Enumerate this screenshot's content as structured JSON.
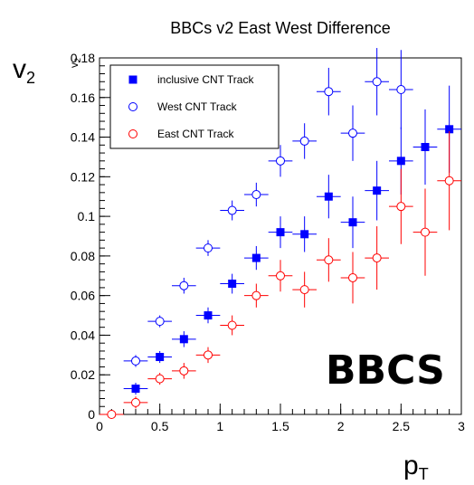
{
  "chart_data": {
    "type": "scatter",
    "title": "BBCs v2 East West Difference",
    "ylabel_main": "v",
    "ylabel_sub": "2",
    "yaxis_small_label_main": "v",
    "yaxis_small_label_sub": "2",
    "xlabel_main": "p",
    "xlabel_sub": "T",
    "watermark": "BBCS",
    "xlim": [
      0,
      3
    ],
    "ylim": [
      0,
      0.18
    ],
    "x_ticks": [
      0,
      0.5,
      1,
      1.5,
      2,
      2.5,
      3
    ],
    "x_tick_labels": [
      "0",
      "0.5",
      "1",
      "1.5",
      "2",
      "2.5",
      "3"
    ],
    "y_ticks": [
      0,
      0.02,
      0.04,
      0.06,
      0.08,
      0.1,
      0.12,
      0.14,
      0.16,
      0.18
    ],
    "y_tick_labels": [
      "0",
      "0.02",
      "0.04",
      "0.06",
      "0.08",
      "0.1",
      "0.12",
      "0.14",
      "0.16",
      "0.18"
    ],
    "grid": false,
    "legend_position": "top-left",
    "series": [
      {
        "name": "inclusive CNT Track",
        "marker": "filled-square",
        "color": "#0000ff",
        "points": [
          {
            "x": 0.3,
            "y": 0.013,
            "xerr": 0.1,
            "yerr": 0.003
          },
          {
            "x": 0.5,
            "y": 0.029,
            "xerr": 0.1,
            "yerr": 0.003
          },
          {
            "x": 0.7,
            "y": 0.038,
            "xerr": 0.1,
            "yerr": 0.004
          },
          {
            "x": 0.9,
            "y": 0.05,
            "xerr": 0.1,
            "yerr": 0.004
          },
          {
            "x": 1.1,
            "y": 0.066,
            "xerr": 0.1,
            "yerr": 0.005
          },
          {
            "x": 1.3,
            "y": 0.079,
            "xerr": 0.1,
            "yerr": 0.006
          },
          {
            "x": 1.5,
            "y": 0.092,
            "xerr": 0.1,
            "yerr": 0.008
          },
          {
            "x": 1.7,
            "y": 0.091,
            "xerr": 0.1,
            "yerr": 0.009
          },
          {
            "x": 1.9,
            "y": 0.11,
            "xerr": 0.1,
            "yerr": 0.011
          },
          {
            "x": 2.1,
            "y": 0.097,
            "xerr": 0.1,
            "yerr": 0.013
          },
          {
            "x": 2.3,
            "y": 0.113,
            "xerr": 0.1,
            "yerr": 0.015
          },
          {
            "x": 2.5,
            "y": 0.128,
            "xerr": 0.1,
            "yerr": 0.017
          },
          {
            "x": 2.7,
            "y": 0.135,
            "xerr": 0.1,
            "yerr": 0.019
          },
          {
            "x": 2.9,
            "y": 0.144,
            "xerr": 0.1,
            "yerr": 0.022
          }
        ]
      },
      {
        "name": "West CNT Track",
        "marker": "open-circle",
        "color": "#0000ff",
        "points": [
          {
            "x": 0.3,
            "y": 0.027,
            "xerr": 0.1,
            "yerr": 0.003
          },
          {
            "x": 0.5,
            "y": 0.047,
            "xerr": 0.1,
            "yerr": 0.003
          },
          {
            "x": 0.7,
            "y": 0.065,
            "xerr": 0.1,
            "yerr": 0.004
          },
          {
            "x": 0.9,
            "y": 0.084,
            "xerr": 0.1,
            "yerr": 0.004
          },
          {
            "x": 1.1,
            "y": 0.103,
            "xerr": 0.1,
            "yerr": 0.005
          },
          {
            "x": 1.3,
            "y": 0.111,
            "xerr": 0.1,
            "yerr": 0.006
          },
          {
            "x": 1.5,
            "y": 0.128,
            "xerr": 0.1,
            "yerr": 0.008
          },
          {
            "x": 1.7,
            "y": 0.138,
            "xerr": 0.1,
            "yerr": 0.009
          },
          {
            "x": 1.9,
            "y": 0.163,
            "xerr": 0.1,
            "yerr": 0.012
          },
          {
            "x": 2.1,
            "y": 0.142,
            "xerr": 0.1,
            "yerr": 0.014
          },
          {
            "x": 2.3,
            "y": 0.168,
            "xerr": 0.1,
            "yerr": 0.017
          },
          {
            "x": 2.5,
            "y": 0.164,
            "xerr": 0.1,
            "yerr": 0.02
          }
        ]
      },
      {
        "name": "East CNT Track",
        "marker": "open-circle",
        "color": "#ff0000",
        "points": [
          {
            "x": 0.1,
            "y": 0.0,
            "xerr": 0.1,
            "yerr": 0.002
          },
          {
            "x": 0.3,
            "y": 0.006,
            "xerr": 0.1,
            "yerr": 0.003
          },
          {
            "x": 0.5,
            "y": 0.018,
            "xerr": 0.1,
            "yerr": 0.003
          },
          {
            "x": 0.7,
            "y": 0.022,
            "xerr": 0.1,
            "yerr": 0.004
          },
          {
            "x": 0.9,
            "y": 0.03,
            "xerr": 0.1,
            "yerr": 0.004
          },
          {
            "x": 1.1,
            "y": 0.045,
            "xerr": 0.1,
            "yerr": 0.005
          },
          {
            "x": 1.3,
            "y": 0.06,
            "xerr": 0.1,
            "yerr": 0.006
          },
          {
            "x": 1.5,
            "y": 0.07,
            "xerr": 0.1,
            "yerr": 0.008
          },
          {
            "x": 1.7,
            "y": 0.063,
            "xerr": 0.1,
            "yerr": 0.009
          },
          {
            "x": 1.9,
            "y": 0.078,
            "xerr": 0.1,
            "yerr": 0.011
          },
          {
            "x": 2.1,
            "y": 0.069,
            "xerr": 0.1,
            "yerr": 0.013
          },
          {
            "x": 2.3,
            "y": 0.079,
            "xerr": 0.1,
            "yerr": 0.016
          },
          {
            "x": 2.5,
            "y": 0.105,
            "xerr": 0.1,
            "yerr": 0.019
          },
          {
            "x": 2.7,
            "y": 0.092,
            "xerr": 0.1,
            "yerr": 0.022
          },
          {
            "x": 2.9,
            "y": 0.118,
            "xerr": 0.1,
            "yerr": 0.025
          }
        ]
      }
    ]
  }
}
